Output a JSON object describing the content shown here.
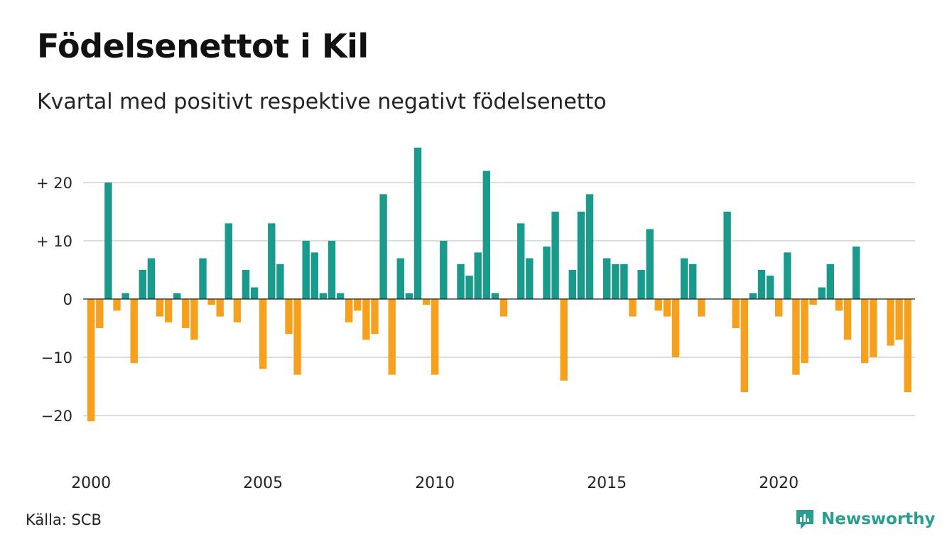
{
  "title": "Födelsenettot i Kil",
  "subtitle": "Kvartal med positivt respektive negativt födelsenetto",
  "source": "Källa: SCB",
  "brand": "Newsworthy",
  "colors": {
    "positive": "#1a9a8a",
    "negative": "#f5a11d",
    "grid": "#dddddd",
    "brand": "#2a9d8f"
  },
  "chart_data": {
    "type": "bar",
    "title": "Födelsenettot i Kil",
    "subtitle": "Kvartal med positivt respektive negativt födelsenetto",
    "x_start": "2000 Q1",
    "x_ticks": [
      "2000",
      "2005",
      "2010",
      "2015",
      "2020"
    ],
    "y_ticks": [
      {
        "value": 20,
        "label": "+ 20"
      },
      {
        "value": 10,
        "label": "+ 10"
      },
      {
        "value": 0,
        "label": "0"
      },
      {
        "value": -10,
        "label": "−10"
      },
      {
        "value": -20,
        "label": "−20"
      }
    ],
    "ylim": [
      -22,
      27
    ],
    "grid": true,
    "values": [
      -21,
      -5,
      20,
      -2,
      1,
      -11,
      5,
      7,
      -3,
      -4,
      1,
      -5,
      -7,
      7,
      -1,
      -3,
      13,
      -4,
      5,
      2,
      -12,
      13,
      6,
      -6,
      -13,
      10,
      8,
      1,
      10,
      1,
      -4,
      -2,
      -7,
      -6,
      18,
      -13,
      7,
      1,
      26,
      -1,
      -13,
      10,
      0,
      6,
      4,
      8,
      22,
      1,
      -3,
      0,
      13,
      7,
      0,
      9,
      15,
      -14,
      5,
      15,
      18,
      0,
      7,
      6,
      6,
      -3,
      5,
      12,
      -2,
      -3,
      -10,
      7,
      6,
      -3,
      0,
      0,
      15,
      -5,
      -16,
      1,
      5,
      4,
      -3,
      8,
      -13,
      -11,
      -1,
      2,
      6,
      -2,
      -7,
      9,
      -11,
      -10,
      0,
      -8,
      -7,
      -16
    ]
  }
}
